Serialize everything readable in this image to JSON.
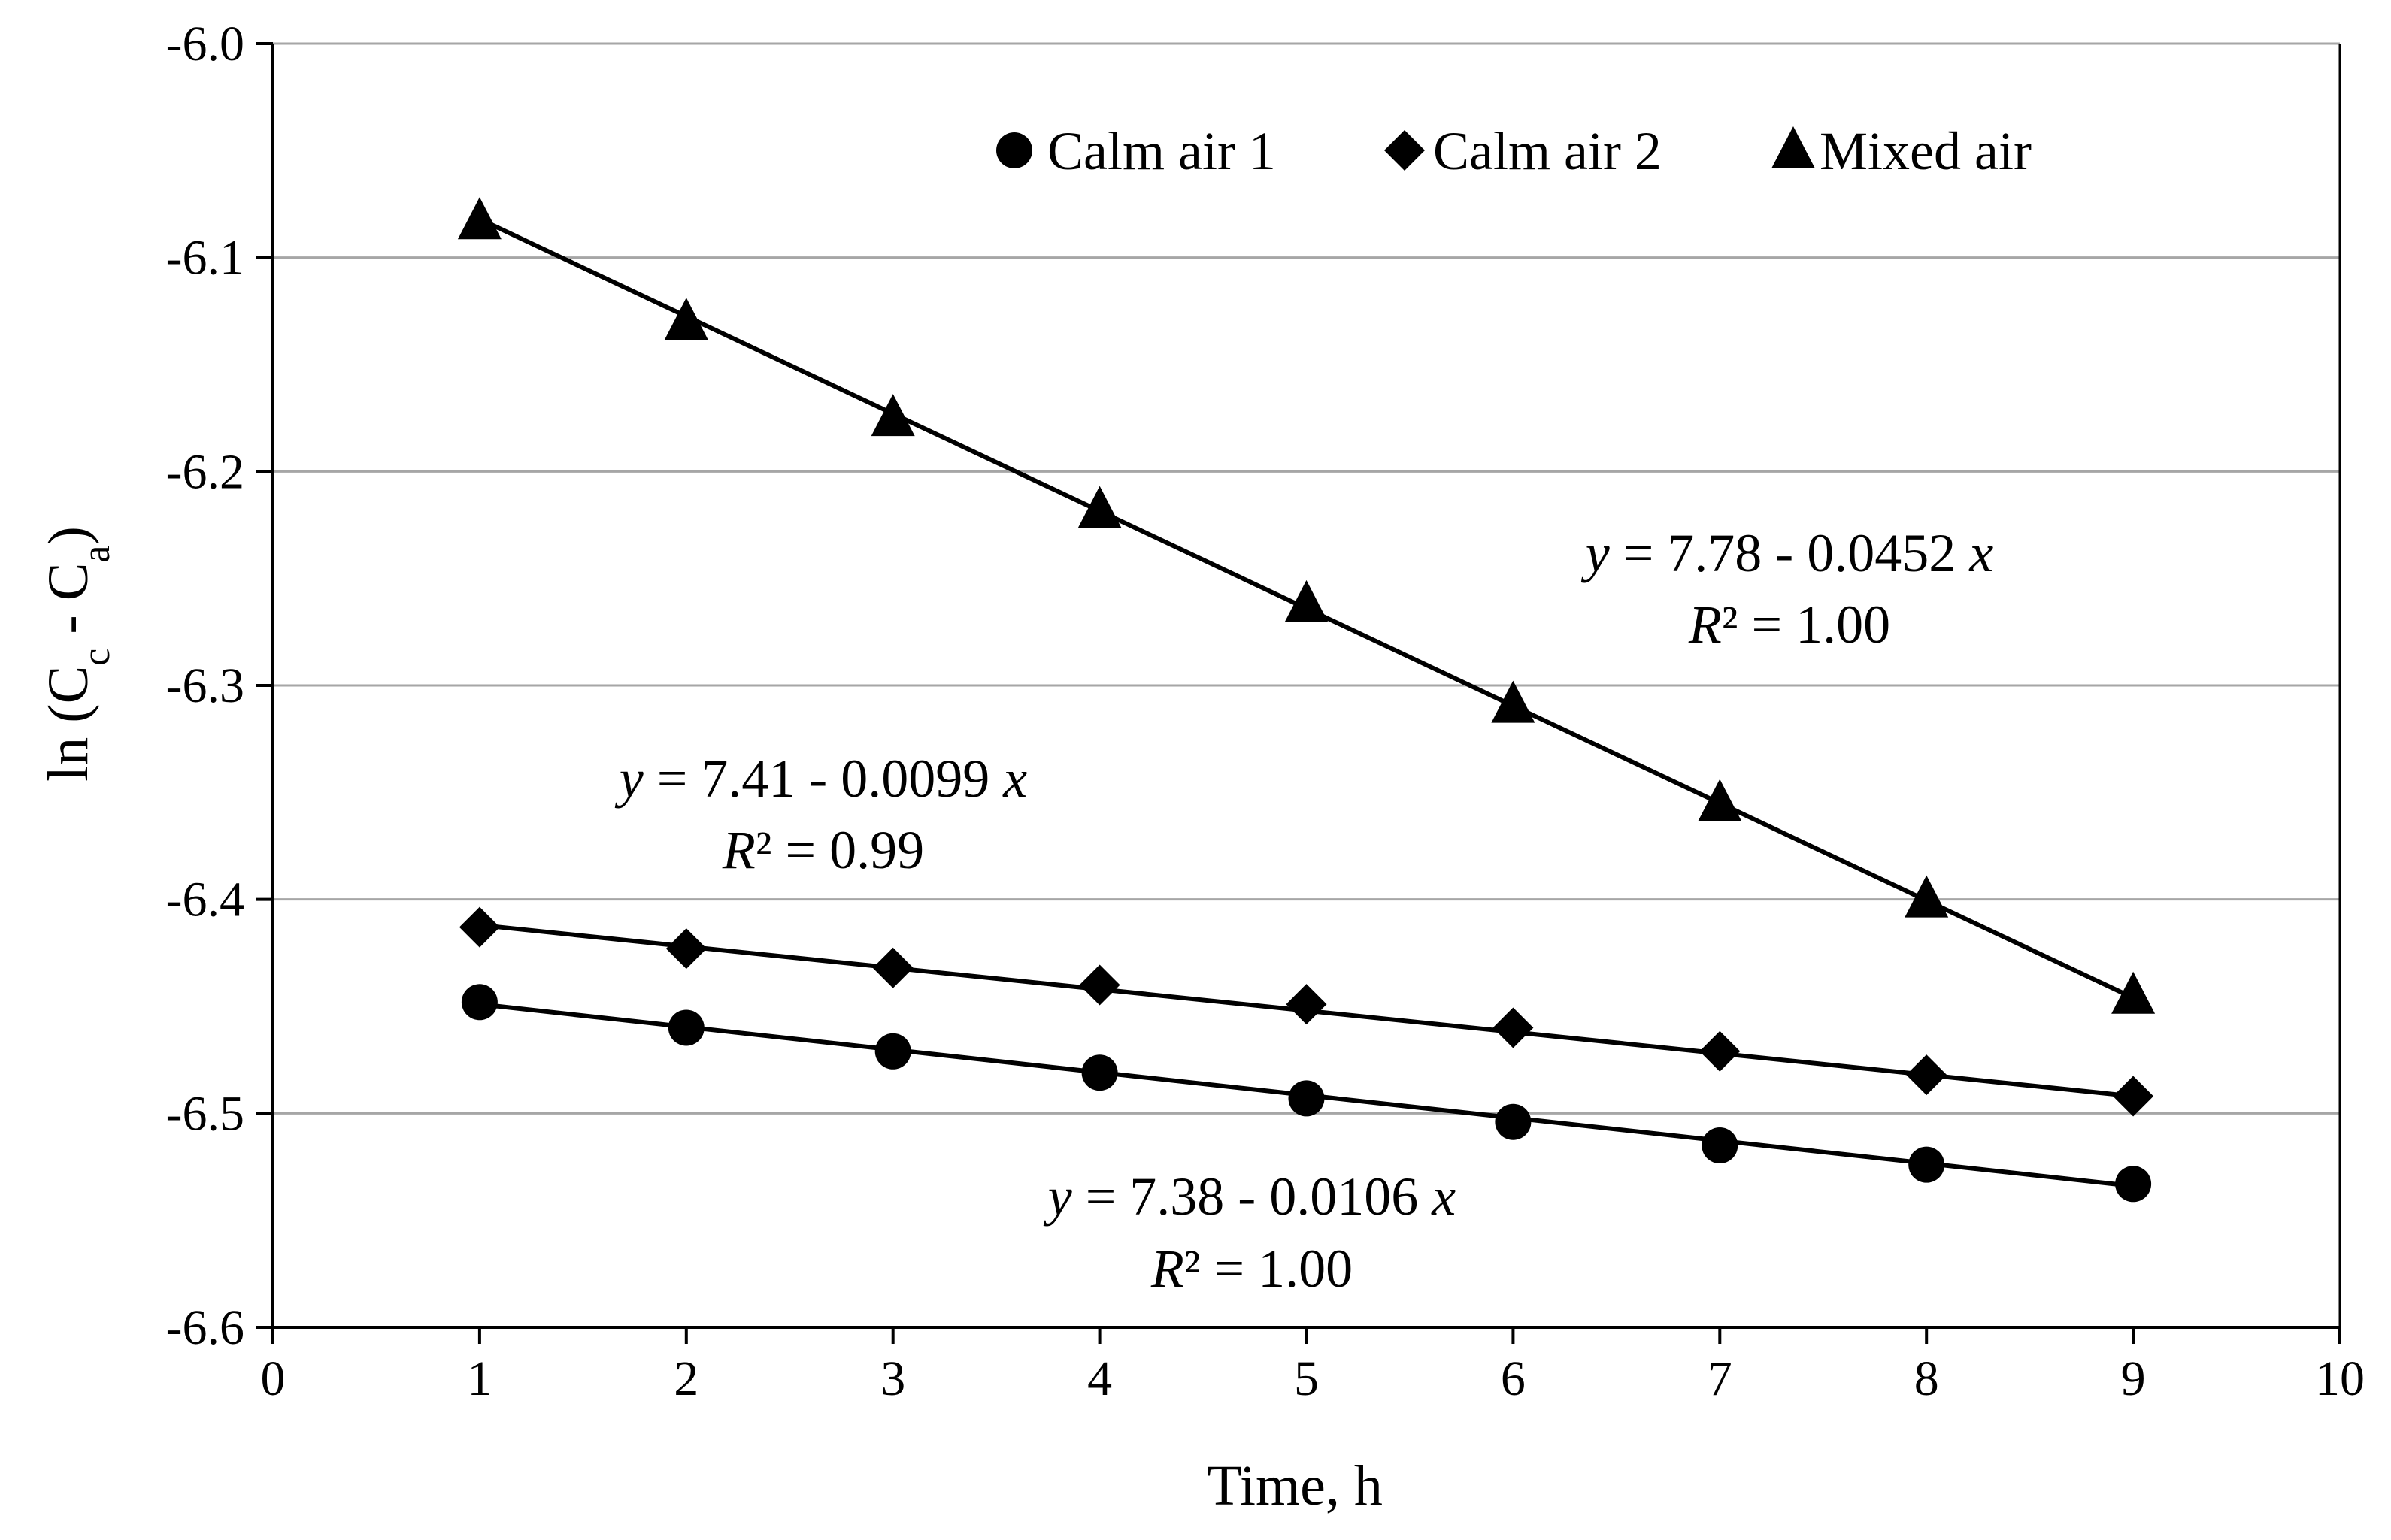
{
  "chart_data": {
    "type": "scatter",
    "title": "",
    "xlabel": "Time, h",
    "ylabel": {
      "prefix": "ln (C",
      "sub1": "c",
      "mid": " - C",
      "sub2": "a",
      "suffix": ")"
    },
    "xlim": [
      0,
      10
    ],
    "ylim": [
      -6.6,
      -6.0
    ],
    "x_ticks": [
      0,
      1,
      2,
      3,
      4,
      5,
      6,
      7,
      8,
      9,
      10
    ],
    "y_ticks": [
      -6.6,
      -6.5,
      -6.4,
      -6.3,
      -6.2,
      -6.1,
      -6.0
    ],
    "x_tick_labels": [
      "0",
      "1",
      "2",
      "3",
      "4",
      "5",
      "6",
      "7",
      "8",
      "9",
      "10"
    ],
    "y_tick_labels": [
      "-6.6",
      "-6.5",
      "-6.4",
      "-6.3",
      "-6.2",
      "-6.1",
      "-6.0"
    ],
    "grid": {
      "horizontal": true,
      "vertical": false
    },
    "legend_position": "top-right",
    "x": [
      1,
      2,
      3,
      4,
      5,
      6,
      7,
      8,
      9
    ],
    "series": [
      {
        "name": "Calm air 1",
        "marker": "circle",
        "values": [
          -6.448,
          -6.46,
          -6.471,
          -6.481,
          -6.493,
          -6.504,
          -6.515,
          -6.524,
          -6.533
        ],
        "fit_line": {
          "x": [
            1,
            9
          ],
          "y": [
            -6.449,
            -6.534
          ]
        },
        "equation": {
          "line1": {
            "y": "y",
            "rest": " = 7.38 - 0.0106 ",
            "x": "x"
          },
          "line2": {
            "r": "R",
            "rest": "² = 1.00"
          }
        }
      },
      {
        "name": "Calm air 2",
        "marker": "diamond",
        "values": [
          -6.413,
          -6.423,
          -6.432,
          -6.44,
          -6.449,
          -6.46,
          -6.471,
          -6.482,
          -6.492
        ],
        "fit_line": {
          "x": [
            1,
            9
          ],
          "y": [
            -6.412,
            -6.492
          ]
        },
        "equation": {
          "line1": {
            "y": "y",
            "rest": " = 7.41 - 0.0099 ",
            "x": "x"
          },
          "line2": {
            "r": "R",
            "rest": "² = 0.99"
          }
        }
      },
      {
        "name": "Mixed air",
        "marker": "triangle",
        "values": [
          -6.083,
          -6.13,
          -6.175,
          -6.218,
          -6.262,
          -6.309,
          -6.355,
          -6.4,
          -6.445
        ],
        "fit_line": {
          "x": [
            1,
            9
          ],
          "y": [
            -6.082,
            -6.446
          ]
        },
        "equation": {
          "line1": {
            "y": "y",
            "rest": " = 7.78 - 0.0452 ",
            "x": "x"
          },
          "line2": {
            "r": "R",
            "rest": "² = 1.00"
          }
        }
      }
    ],
    "colors": {
      "marker": "#000000",
      "line": "#000000",
      "grid": "#a6a6a6",
      "axis": "#000000",
      "background": "#ffffff"
    }
  }
}
